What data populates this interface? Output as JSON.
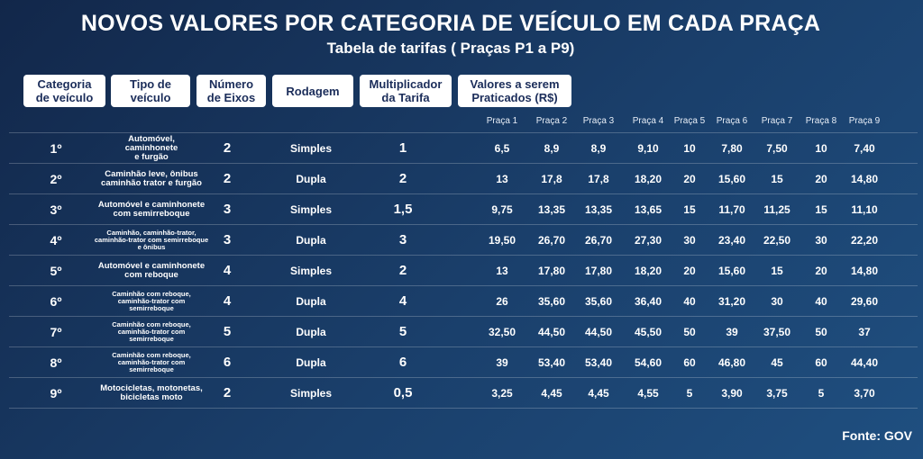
{
  "title": "NOVOS VALORES POR CATEGORIA DE VEÍCULO EM CADA PRAÇA",
  "subtitle": "Tabela de tarifas ( Praças P1 a P9)",
  "headers": {
    "categoria": "Categoria\nde veículo",
    "tipo": "Tipo de\nveículo",
    "eixos": "Número\nde Eixos",
    "rodagem": "Rodagem",
    "multiplicador": "Multiplicador\nda Tarifa",
    "valores": "Valores a serem\nPraticados (R$)"
  },
  "pracas": [
    "Praça 1",
    "Praça 2",
    "Praça 3",
    "Praça 4",
    "Praça 5",
    "Praça 6",
    "Praça 7",
    "Praça 8",
    "Praça 9"
  ],
  "rows": [
    {
      "categoria": "1º",
      "tipo": "Automóvel,\ncaminhonete\ne furgão",
      "eixos": "2",
      "rodagem": "Simples",
      "multiplicador": "1",
      "valores": [
        "6,5",
        "8,9",
        "8,9",
        "9,10",
        "10",
        "7,80",
        "7,50",
        "10",
        "7,40"
      ]
    },
    {
      "categoria": "2º",
      "tipo": "Caminhão leve, ônibus\ncaminhão trator e furgão",
      "eixos": "2",
      "rodagem": "Dupla",
      "multiplicador": "2",
      "valores": [
        "13",
        "17,8",
        "17,8",
        "18,20",
        "20",
        "15,60",
        "15",
        "20",
        "14,80"
      ]
    },
    {
      "categoria": "3º",
      "tipo": "Automóvel e caminhonete\ncom semirreboque",
      "eixos": "3",
      "rodagem": "Simples",
      "multiplicador": "1,5",
      "valores": [
        "9,75",
        "13,35",
        "13,35",
        "13,65",
        "15",
        "11,70",
        "11,25",
        "15",
        "11,10"
      ]
    },
    {
      "categoria": "4º",
      "tipo": "Caminhão, caminhão-trator,\ncaminhão-trator com semirreboque\ne ônibus",
      "eixos": "3",
      "rodagem": "Dupla",
      "multiplicador": "3",
      "valores": [
        "19,50",
        "26,70",
        "26,70",
        "27,30",
        "30",
        "23,40",
        "22,50",
        "30",
        "22,20"
      ]
    },
    {
      "categoria": "5º",
      "tipo": "Automóvel e caminhonete\ncom reboque",
      "eixos": "4",
      "rodagem": "Simples",
      "multiplicador": "2",
      "valores": [
        "13",
        "17,80",
        "17,80",
        "18,20",
        "20",
        "15,60",
        "15",
        "20",
        "14,80"
      ]
    },
    {
      "categoria": "6º",
      "tipo": "Caminhão com reboque,\ncaminhão-trator com\nsemirreboque",
      "eixos": "4",
      "rodagem": "Dupla",
      "multiplicador": "4",
      "valores": [
        "26",
        "35,60",
        "35,60",
        "36,40",
        "40",
        "31,20",
        "30",
        "40",
        "29,60"
      ]
    },
    {
      "categoria": "7º",
      "tipo": "Caminhão com reboque,\ncaminhão-trator com\nsemirreboque",
      "eixos": "5",
      "rodagem": "Dupla",
      "multiplicador": "5",
      "valores": [
        "32,50",
        "44,50",
        "44,50",
        "45,50",
        "50",
        "39",
        "37,50",
        "50",
        "37"
      ]
    },
    {
      "categoria": "8º",
      "tipo": "Caminhão com reboque,\ncaminhão-trator com\nsemirreboque",
      "eixos": "6",
      "rodagem": "Dupla",
      "multiplicador": "6",
      "valores": [
        "39",
        "53,40",
        "53,40",
        "54,60",
        "60",
        "46,80",
        "45",
        "60",
        "44,40"
      ]
    },
    {
      "categoria": "9º",
      "tipo": "Motocicletas, motonetas,\nbicicletas moto",
      "eixos": "2",
      "rodagem": "Simples",
      "multiplicador": "0,5",
      "valores": [
        "3,25",
        "4,45",
        "4,45",
        "4,55",
        "5",
        "3,90",
        "3,75",
        "5",
        "3,70"
      ]
    }
  ],
  "fonte": "Fonte: GOV"
}
